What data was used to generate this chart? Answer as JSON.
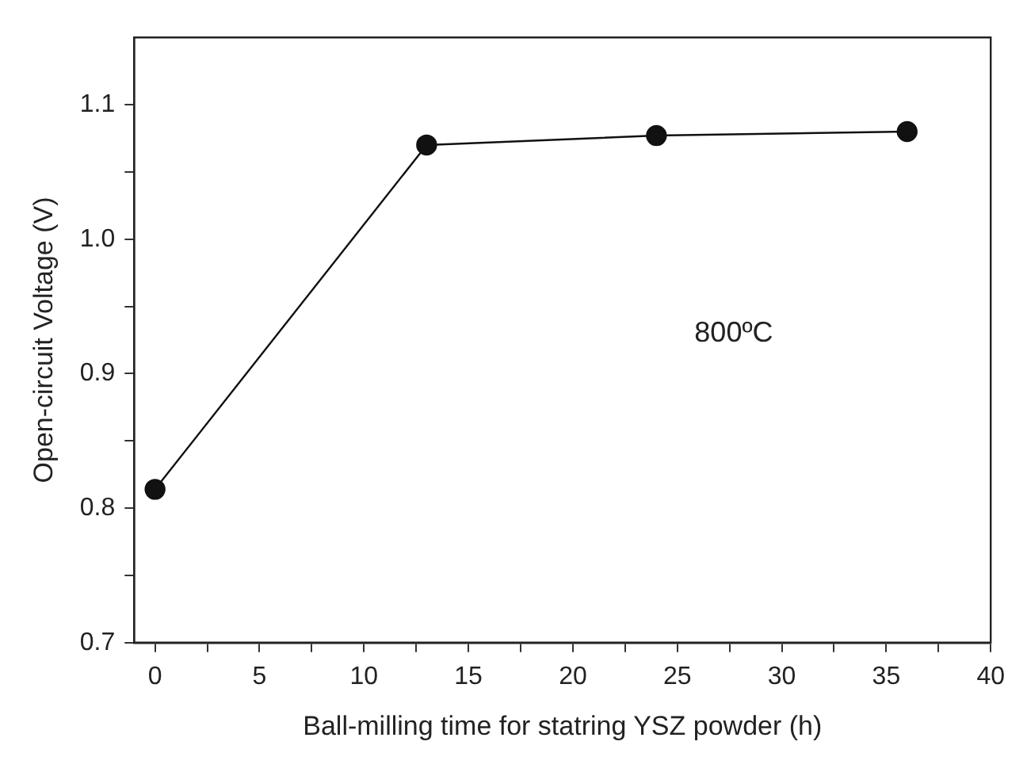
{
  "chart_data": {
    "type": "line",
    "xlabel": "Ball-milling time for statring YSZ powder (h)",
    "ylabel": "Open-circuit Voltage (V)",
    "annotations": [
      "800ºC"
    ],
    "x": [
      0,
      13,
      24,
      36
    ],
    "series": [
      {
        "color": "#111111",
        "values": [
          0.814,
          1.07,
          1.077,
          1.08
        ]
      }
    ],
    "xlim": [
      -1,
      40
    ],
    "xticks": [
      0,
      {
        "value": 2.5,
        "label": null
      },
      5,
      {
        "value": 7.5,
        "label": null
      },
      10,
      {
        "value": 12.5,
        "label": null
      },
      15,
      {
        "value": 17.5,
        "label": null
      },
      20,
      {
        "value": 22.5,
        "label": null
      },
      25,
      {
        "value": 27.5,
        "label": null
      },
      30,
      {
        "value": 32.5,
        "label": null
      },
      35,
      {
        "value": 37.5,
        "label": null
      },
      40
    ],
    "ylim": [
      0.7,
      1.15
    ],
    "yticks": [
      {
        "value": 0.7,
        "label": "0.7"
      },
      {
        "value": 0.75,
        "label": null
      },
      {
        "value": 0.8,
        "label": "0.8"
      },
      {
        "value": 0.85,
        "label": null
      },
      {
        "value": 0.9,
        "label": "0.9"
      },
      {
        "value": 0.95,
        "label": null
      },
      {
        "value": 1.0,
        "label": "1.0"
      },
      {
        "value": 1.05,
        "label": null
      },
      {
        "value": 1.1,
        "label": "1.1"
      }
    ],
    "grid": false,
    "legend": false,
    "marker": "circle",
    "line_style": "solid"
  }
}
